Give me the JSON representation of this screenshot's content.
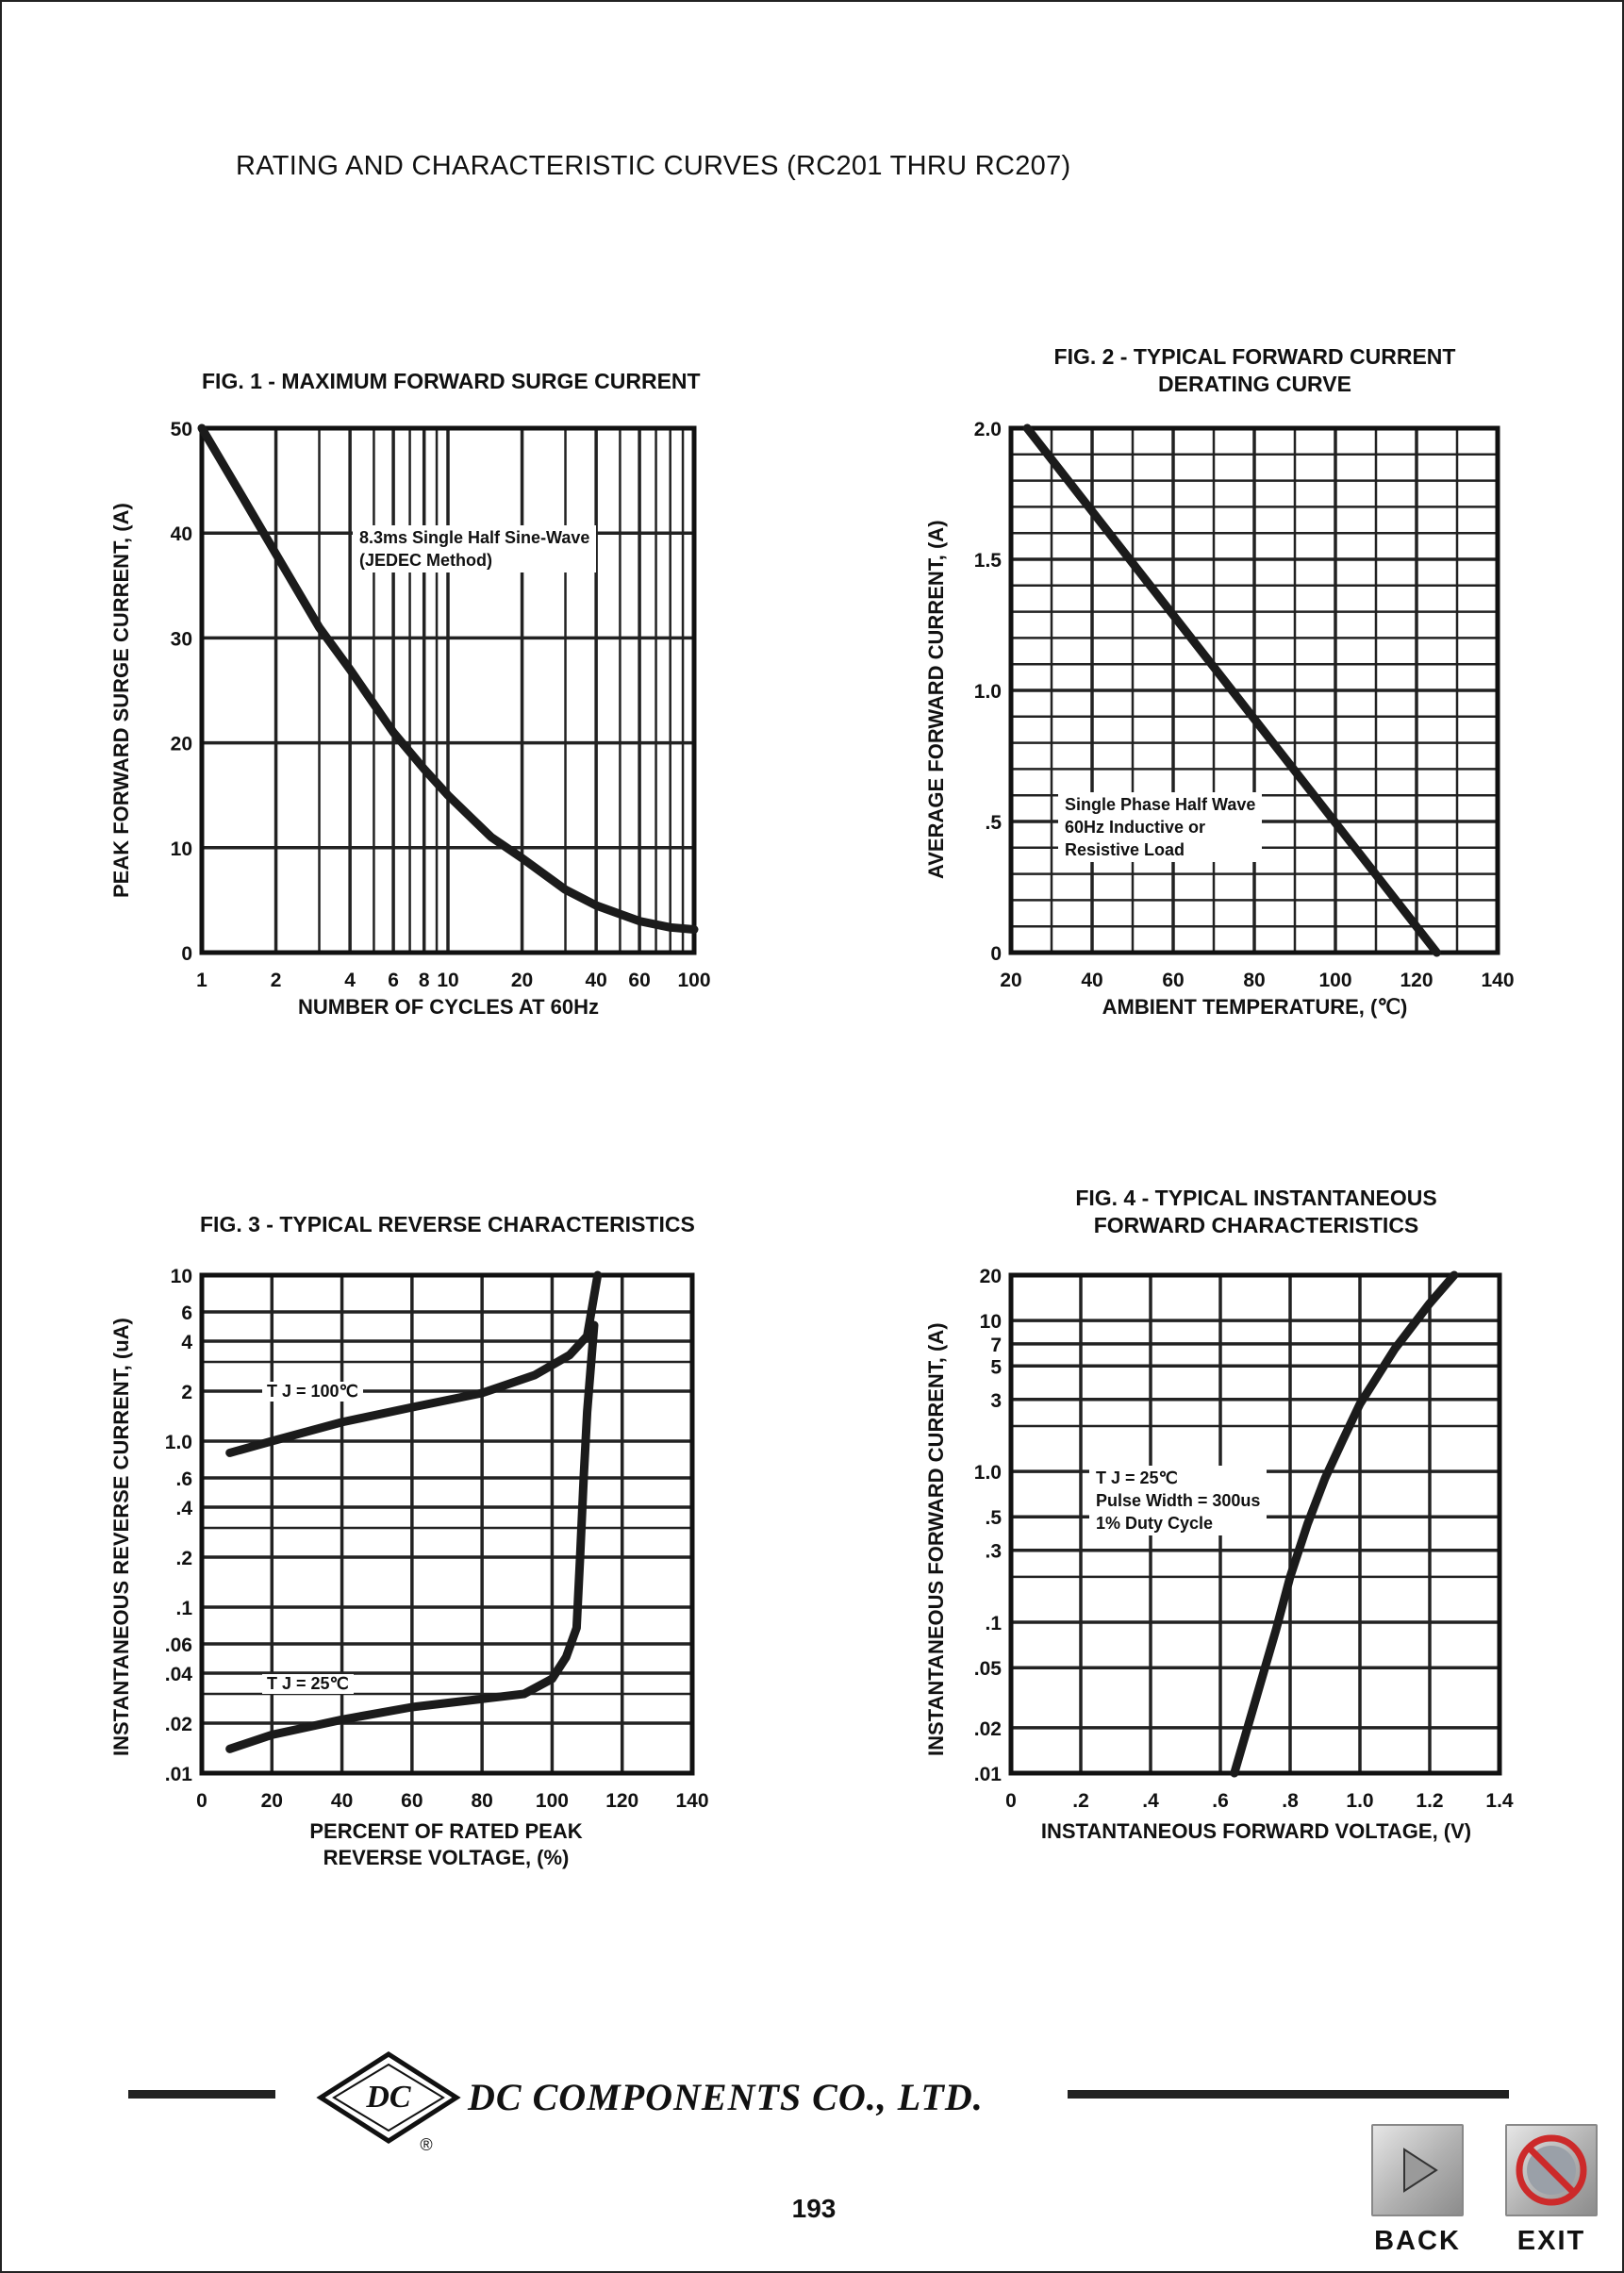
{
  "page": {
    "title": "RATING AND CHARACTERISTIC CURVES (RC201 THRU RC207)",
    "company": "DC COMPONENTS CO., LTD.",
    "logo": {
      "icon": "dc-diamond-logo-icon",
      "text": "DC",
      "registered": "®"
    },
    "page_number": "193",
    "nav": {
      "back_label": "BACK",
      "exit_label": "EXIT",
      "back_icon": "play-arrow-icon",
      "exit_icon": "no-entry-icon"
    }
  },
  "chart_data": [
    {
      "type": "line",
      "title_lines": [
        "FIG. 1 - MAXIMUM  FORWARD SURGE CURRENT"
      ],
      "xlabel_lines": [
        "NUMBER OF CYCLES AT 60Hz"
      ],
      "ylabel": "PEAK FORWARD SURGE CURRENT, (A)",
      "xscale": "log",
      "xlim": [
        1,
        100
      ],
      "ylim": [
        0,
        50
      ],
      "xticks": [
        1,
        2,
        4,
        6,
        8,
        10,
        20,
        40,
        60,
        100
      ],
      "xtick_labels": [
        "1",
        "2",
        "4",
        "6",
        "8",
        "10",
        "20",
        "40",
        "60",
        "100"
      ],
      "yticks": [
        0,
        10,
        20,
        30,
        40,
        50
      ],
      "ytick_labels": [
        "0",
        "10",
        "20",
        "30",
        "40",
        "50"
      ],
      "grid": true,
      "annotation_lines": [
        "8.3ms Single Half Sine-Wave",
        "(JEDEC Method)"
      ],
      "series": [
        {
          "x": [
            1,
            1.5,
            2,
            3,
            4,
            6,
            8,
            10,
            15,
            20,
            30,
            40,
            60,
            80,
            100
          ],
          "y": [
            50,
            43,
            38,
            31,
            27,
            21,
            17.5,
            15,
            11,
            9,
            6,
            4.5,
            3,
            2.4,
            2.2
          ]
        }
      ]
    },
    {
      "type": "line",
      "title_lines": [
        "FIG. 2 - TYPICAL FORWARD CURRENT",
        "DERATING CURVE"
      ],
      "xlabel_lines": [
        "AMBIENT TEMPERATURE, (℃)"
      ],
      "ylabel": "AVERAGE FORWARD CURRENT, (A)",
      "xscale": "linear",
      "xlim": [
        20,
        140
      ],
      "ylim": [
        0,
        2.0
      ],
      "xticks": [
        20,
        40,
        60,
        80,
        100,
        120,
        140
      ],
      "xtick_labels": [
        "20",
        "40",
        "60",
        "80",
        "100",
        "120",
        "140"
      ],
      "yticks": [
        0,
        0.5,
        1.0,
        1.5,
        2.0
      ],
      "ytick_labels": [
        "0",
        ".5",
        "1.0",
        "1.5",
        "2.0"
      ],
      "grid": true,
      "annotation_lines": [
        "Single Phase Half Wave",
        "60Hz Inductive or",
        "Resistive Load"
      ],
      "series": [
        {
          "x": [
            24,
            125
          ],
          "y": [
            2.0,
            0
          ]
        }
      ]
    },
    {
      "type": "line",
      "title_lines": [
        "FIG. 3 - TYPICAL REVERSE CHARACTERISTICS"
      ],
      "xlabel_lines": [
        "PERCENT OF RATED PEAK",
        "REVERSE VOLTAGE, (%)"
      ],
      "ylabel": "INSTANTANEOUS REVERSE CURRENT, (uA)",
      "xscale": "linear",
      "yscale": "log",
      "xlim": [
        0,
        140
      ],
      "ylim": [
        0.01,
        10
      ],
      "xticks": [
        0,
        20,
        40,
        60,
        80,
        100,
        120,
        140
      ],
      "xtick_labels": [
        "0",
        "20",
        "40",
        "60",
        "80",
        "100",
        "120",
        "140"
      ],
      "yticks": [
        0.01,
        0.02,
        0.04,
        0.06,
        0.1,
        0.2,
        0.4,
        0.6,
        1.0,
        2,
        4,
        6,
        10
      ],
      "ytick_labels": [
        ".01",
        ".02",
        ".04",
        ".06",
        ".1",
        ".2",
        ".4",
        ".6",
        "1.0",
        "2",
        "4",
        "6",
        "10"
      ],
      "grid": true,
      "series": [
        {
          "name": "T J = 100℃",
          "x": [
            8,
            20,
            40,
            60,
            80,
            95,
            105,
            110,
            113
          ],
          "y": [
            0.85,
            1.0,
            1.3,
            1.6,
            1.95,
            2.5,
            3.3,
            4.3,
            10
          ]
        },
        {
          "name": "T J = 25℃",
          "x": [
            8,
            20,
            40,
            60,
            80,
            92,
            100,
            104,
            107,
            108,
            109,
            110,
            112
          ],
          "y": [
            0.014,
            0.017,
            0.021,
            0.025,
            0.028,
            0.03,
            0.037,
            0.05,
            0.075,
            0.2,
            0.6,
            1.5,
            5
          ]
        }
      ]
    },
    {
      "type": "line",
      "title_lines": [
        "FIG. 4 - TYPICAL INSTANTANEOUS",
        "FORWARD CHARACTERISTICS"
      ],
      "xlabel_lines": [
        "INSTANTANEOUS FORWARD VOLTAGE, (V)"
      ],
      "ylabel": "INSTANTANEOUS FORWARD CURRENT, (A)",
      "xscale": "linear",
      "yscale": "log",
      "xlim": [
        0,
        1.4
      ],
      "ylim": [
        0.01,
        20
      ],
      "xticks": [
        0,
        0.2,
        0.4,
        0.6,
        0.8,
        1.0,
        1.2,
        1.4
      ],
      "xtick_labels": [
        "0",
        ".2",
        ".4",
        ".6",
        ".8",
        "1.0",
        "1.2",
        "1.4"
      ],
      "yticks": [
        0.01,
        0.02,
        0.05,
        0.1,
        0.3,
        0.5,
        1.0,
        3,
        5,
        7,
        10,
        20
      ],
      "ytick_labels": [
        ".01",
        ".02",
        ".05",
        ".1",
        ".3",
        ".5",
        "1.0",
        "3",
        "5",
        "7",
        "10",
        "20"
      ],
      "grid": true,
      "annotation_lines": [
        "T J = 25℃",
        "Pulse Width = 300us",
        "1% Duty Cycle"
      ],
      "series": [
        {
          "x": [
            0.64,
            0.7,
            0.76,
            0.8,
            0.85,
            0.9,
            0.95,
            1.0,
            1.1,
            1.2,
            1.27
          ],
          "y": [
            0.01,
            0.03,
            0.09,
            0.2,
            0.45,
            0.9,
            1.6,
            2.8,
            6.5,
            13,
            20
          ]
        }
      ]
    }
  ]
}
